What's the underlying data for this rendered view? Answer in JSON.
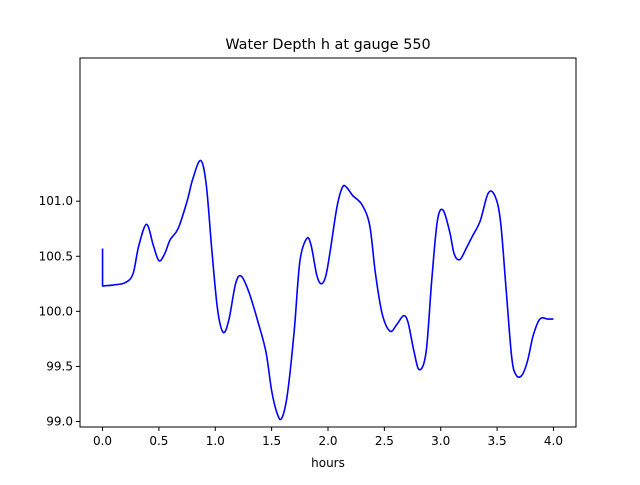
{
  "chart_data": {
    "type": "line",
    "title": "Water Depth h at gauge 550",
    "xlabel": "hours",
    "ylabel": "",
    "xlim": [
      -0.2,
      4.2
    ],
    "ylim": [
      98.95,
      102.3
    ],
    "xticks": [
      0.0,
      0.5,
      1.0,
      1.5,
      2.0,
      2.5,
      3.0,
      3.5,
      4.0
    ],
    "xtick_labels": [
      "0.0",
      "0.5",
      "1.0",
      "1.5",
      "2.0",
      "2.5",
      "3.0",
      "3.5",
      "4.0"
    ],
    "yticks": [
      99.0,
      99.5,
      100.0,
      100.5,
      101.0
    ],
    "ytick_labels": [
      "99.0",
      "99.5",
      "100.0",
      "100.5",
      "101.0"
    ],
    "grid": false,
    "series": [
      {
        "color": "#0000ff",
        "x": [
          0.0,
          0.0,
          0.1,
          0.2,
          0.27,
          0.32,
          0.39,
          0.45,
          0.5,
          0.55,
          0.6,
          0.67,
          0.75,
          0.8,
          0.87,
          0.92,
          0.97,
          1.02,
          1.07,
          1.12,
          1.18,
          1.23,
          1.3,
          1.38,
          1.45,
          1.5,
          1.55,
          1.59,
          1.64,
          1.7,
          1.75,
          1.81,
          1.85,
          1.9,
          1.94,
          1.98,
          2.02,
          2.08,
          2.13,
          2.17,
          2.22,
          2.3,
          2.37,
          2.42,
          2.48,
          2.55,
          2.61,
          2.67,
          2.71,
          2.76,
          2.81,
          2.87,
          2.92,
          2.97,
          3.02,
          3.08,
          3.12,
          3.17,
          3.23,
          3.28,
          3.35,
          3.42,
          3.48,
          3.53,
          3.58,
          3.63,
          3.67,
          3.72,
          3.77,
          3.82,
          3.88,
          3.95,
          4.0
        ],
        "y": [
          100.57,
          100.23,
          100.24,
          100.26,
          100.34,
          100.59,
          100.79,
          100.6,
          100.46,
          100.52,
          100.65,
          100.75,
          101.0,
          101.2,
          101.37,
          101.15,
          100.55,
          100.02,
          99.81,
          99.92,
          100.25,
          100.32,
          100.17,
          99.9,
          99.63,
          99.28,
          99.07,
          99.03,
          99.25,
          99.82,
          100.45,
          100.66,
          100.6,
          100.33,
          100.25,
          100.32,
          100.55,
          100.95,
          101.13,
          101.12,
          101.05,
          100.97,
          100.78,
          100.35,
          99.98,
          99.82,
          99.88,
          99.96,
          99.9,
          99.65,
          99.47,
          99.63,
          100.28,
          100.82,
          100.92,
          100.72,
          100.52,
          100.47,
          100.58,
          100.68,
          100.82,
          101.07,
          101.05,
          100.82,
          100.2,
          99.58,
          99.42,
          99.42,
          99.55,
          99.78,
          99.93,
          99.93,
          99.93
        ]
      }
    ]
  }
}
